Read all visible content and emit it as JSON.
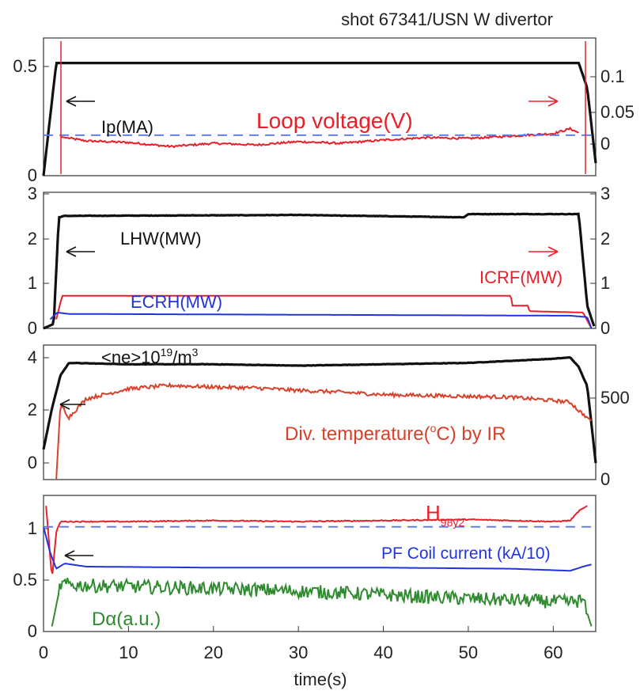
{
  "title": "shot 67341/USN W divertor",
  "xlabel": "time(s)",
  "x_ticks": [
    "0",
    "10",
    "20",
    "30",
    "40",
    "50",
    "60"
  ],
  "colors": {
    "black": "#111111",
    "red": "#e8202a",
    "blue": "#2233dd",
    "orange": "#d8402a",
    "green": "#2e8b2e",
    "dash": "#5577ee"
  },
  "chart_data": [
    {
      "type": "line",
      "panel": 1,
      "xlim": [
        0,
        65
      ],
      "left_axis": {
        "ylim": [
          0,
          0.55
        ],
        "ticks": [
          "0",
          "0.5"
        ]
      },
      "right_axis": {
        "ylim": [
          -0.04,
          0.13
        ],
        "ticks": [
          "0",
          "0.05",
          "0.1"
        ]
      },
      "annotations": [
        "Ip(MA)",
        "Loop voltage(V)"
      ],
      "series": [
        {
          "name": "Ip(MA)",
          "axis": "left",
          "color": "black",
          "x": [
            0,
            1.5,
            62,
            63,
            64,
            65
          ],
          "y": [
            0,
            0.45,
            0.45,
            0.45,
            0.35,
            0.05
          ]
        },
        {
          "name": "Loop voltage(V)",
          "axis": "right",
          "color": "red",
          "x": [
            2,
            5,
            10,
            15,
            20,
            25,
            30,
            35,
            40,
            45,
            50,
            55,
            60,
            62,
            63
          ],
          "y": [
            0.008,
            0.003,
            0.001,
            -0.004,
            0.0,
            -0.002,
            0.002,
            0.0,
            0.004,
            0.007,
            0.006,
            0.009,
            0.012,
            0.018,
            0.013
          ]
        },
        {
          "name": "reference",
          "axis": "right",
          "color": "dash",
          "style": "dashed",
          "x": [
            0,
            65
          ],
          "y": [
            0.01,
            0.01
          ]
        }
      ]
    },
    {
      "type": "line",
      "panel": 2,
      "xlim": [
        0,
        65
      ],
      "left_axis": {
        "ylim": [
          0,
          3
        ],
        "ticks": [
          "0",
          "1",
          "2",
          "3"
        ]
      },
      "right_axis": {
        "ylim": [
          0,
          3
        ],
        "ticks": [
          "0",
          "1",
          "2",
          "3"
        ]
      },
      "annotations": [
        "LHW(MW)",
        "ICRF(MW)",
        "ECRH(MW)"
      ],
      "series": [
        {
          "name": "LHW(MW)",
          "color": "black",
          "x": [
            0,
            1.2,
            1.8,
            2.5,
            30,
            49.5,
            50,
            63,
            64,
            64.8
          ],
          "y": [
            0,
            0.1,
            2.45,
            2.48,
            2.5,
            2.45,
            2.52,
            2.52,
            0.5,
            0.05
          ]
        },
        {
          "name": "ICRF(MW)",
          "color": "red",
          "x": [
            1.5,
            2.2,
            55,
            55.2,
            57,
            57.2,
            63.5,
            64.5
          ],
          "y": [
            0.2,
            0.72,
            0.72,
            0.5,
            0.5,
            0.38,
            0.35,
            0
          ]
        },
        {
          "name": "ECRH(MW)",
          "color": "blue",
          "x": [
            0.8,
            1.6,
            3,
            62,
            64,
            64.5
          ],
          "y": [
            0.2,
            0.35,
            0.32,
            0.28,
            0.25,
            0
          ]
        }
      ]
    },
    {
      "type": "line",
      "panel": 3,
      "xlim": [
        0,
        65
      ],
      "left_axis": {
        "ylim": [
          -0.6,
          4.3
        ],
        "ticks": [
          "0",
          "2",
          "4"
        ]
      },
      "right_axis": {
        "ylim": [
          0,
          800
        ],
        "ticks": [
          "0",
          "500"
        ]
      },
      "annotations": [
        "<ne>10",
        "19",
        "/m",
        "3",
        "Div. temperature(",
        "o",
        "C) by IR"
      ],
      "series": [
        {
          "name": "<ne>",
          "axis": "left",
          "color": "black",
          "x": [
            0,
            1,
            2,
            3,
            10,
            20,
            30,
            40,
            50,
            60,
            62,
            63,
            64,
            65
          ],
          "y": [
            0.5,
            2.0,
            3.2,
            3.65,
            3.6,
            3.6,
            3.55,
            3.6,
            3.65,
            3.8,
            3.85,
            3.5,
            2.8,
            0
          ]
        },
        {
          "name": "Div. temperature",
          "axis": "right",
          "color": "orange",
          "x": [
            1.5,
            2,
            3,
            5,
            10,
            15,
            20,
            25,
            30,
            35,
            40,
            45,
            50,
            55,
            60,
            62,
            63,
            64.5
          ],
          "y": [
            0,
            450,
            370,
            480,
            540,
            560,
            550,
            545,
            530,
            520,
            505,
            500,
            495,
            490,
            470,
            460,
            410,
            350
          ]
        }
      ]
    },
    {
      "type": "line",
      "panel": 4,
      "xlim": [
        0,
        65
      ],
      "left_axis": {
        "ylim": [
          0,
          1.3
        ],
        "ticks": [
          "0",
          "0.5",
          "1"
        ]
      },
      "annotations": [
        "H",
        "98y2",
        "PF Coil current (kA/10)",
        "Dα(a.u.)"
      ],
      "series": [
        {
          "name": "H98y2",
          "color": "red",
          "x": [
            0.3,
            1,
            1.5,
            2,
            3,
            10,
            20,
            30,
            40,
            50,
            60,
            62,
            63,
            64
          ],
          "y": [
            1.2,
            0.5,
            0.95,
            1.05,
            1.05,
            1.05,
            1.06,
            1.05,
            1.06,
            1.07,
            1.05,
            1.06,
            1.15,
            1.2
          ]
        },
        {
          "name": "PF Coil current (kA/10)",
          "color": "blue",
          "x": [
            0,
            0.8,
            1.5,
            2.5,
            5,
            20,
            40,
            55,
            62,
            63.5,
            64.5
          ],
          "y": [
            1.0,
            0.75,
            0.6,
            0.65,
            0.62,
            0.61,
            0.61,
            0.6,
            0.58,
            0.62,
            0.64
          ]
        },
        {
          "name": "Dα(a.u.)",
          "color": "green",
          "x": [
            1,
            2,
            5,
            15,
            25,
            35,
            45,
            55,
            62,
            63.5,
            64.5
          ],
          "y": [
            0.05,
            0.45,
            0.44,
            0.42,
            0.4,
            0.37,
            0.33,
            0.3,
            0.28,
            0.3,
            0.05
          ]
        },
        {
          "name": "reference",
          "color": "dash",
          "style": "dashed",
          "x": [
            0,
            65
          ],
          "y": [
            1.0,
            1.0
          ]
        }
      ]
    }
  ]
}
